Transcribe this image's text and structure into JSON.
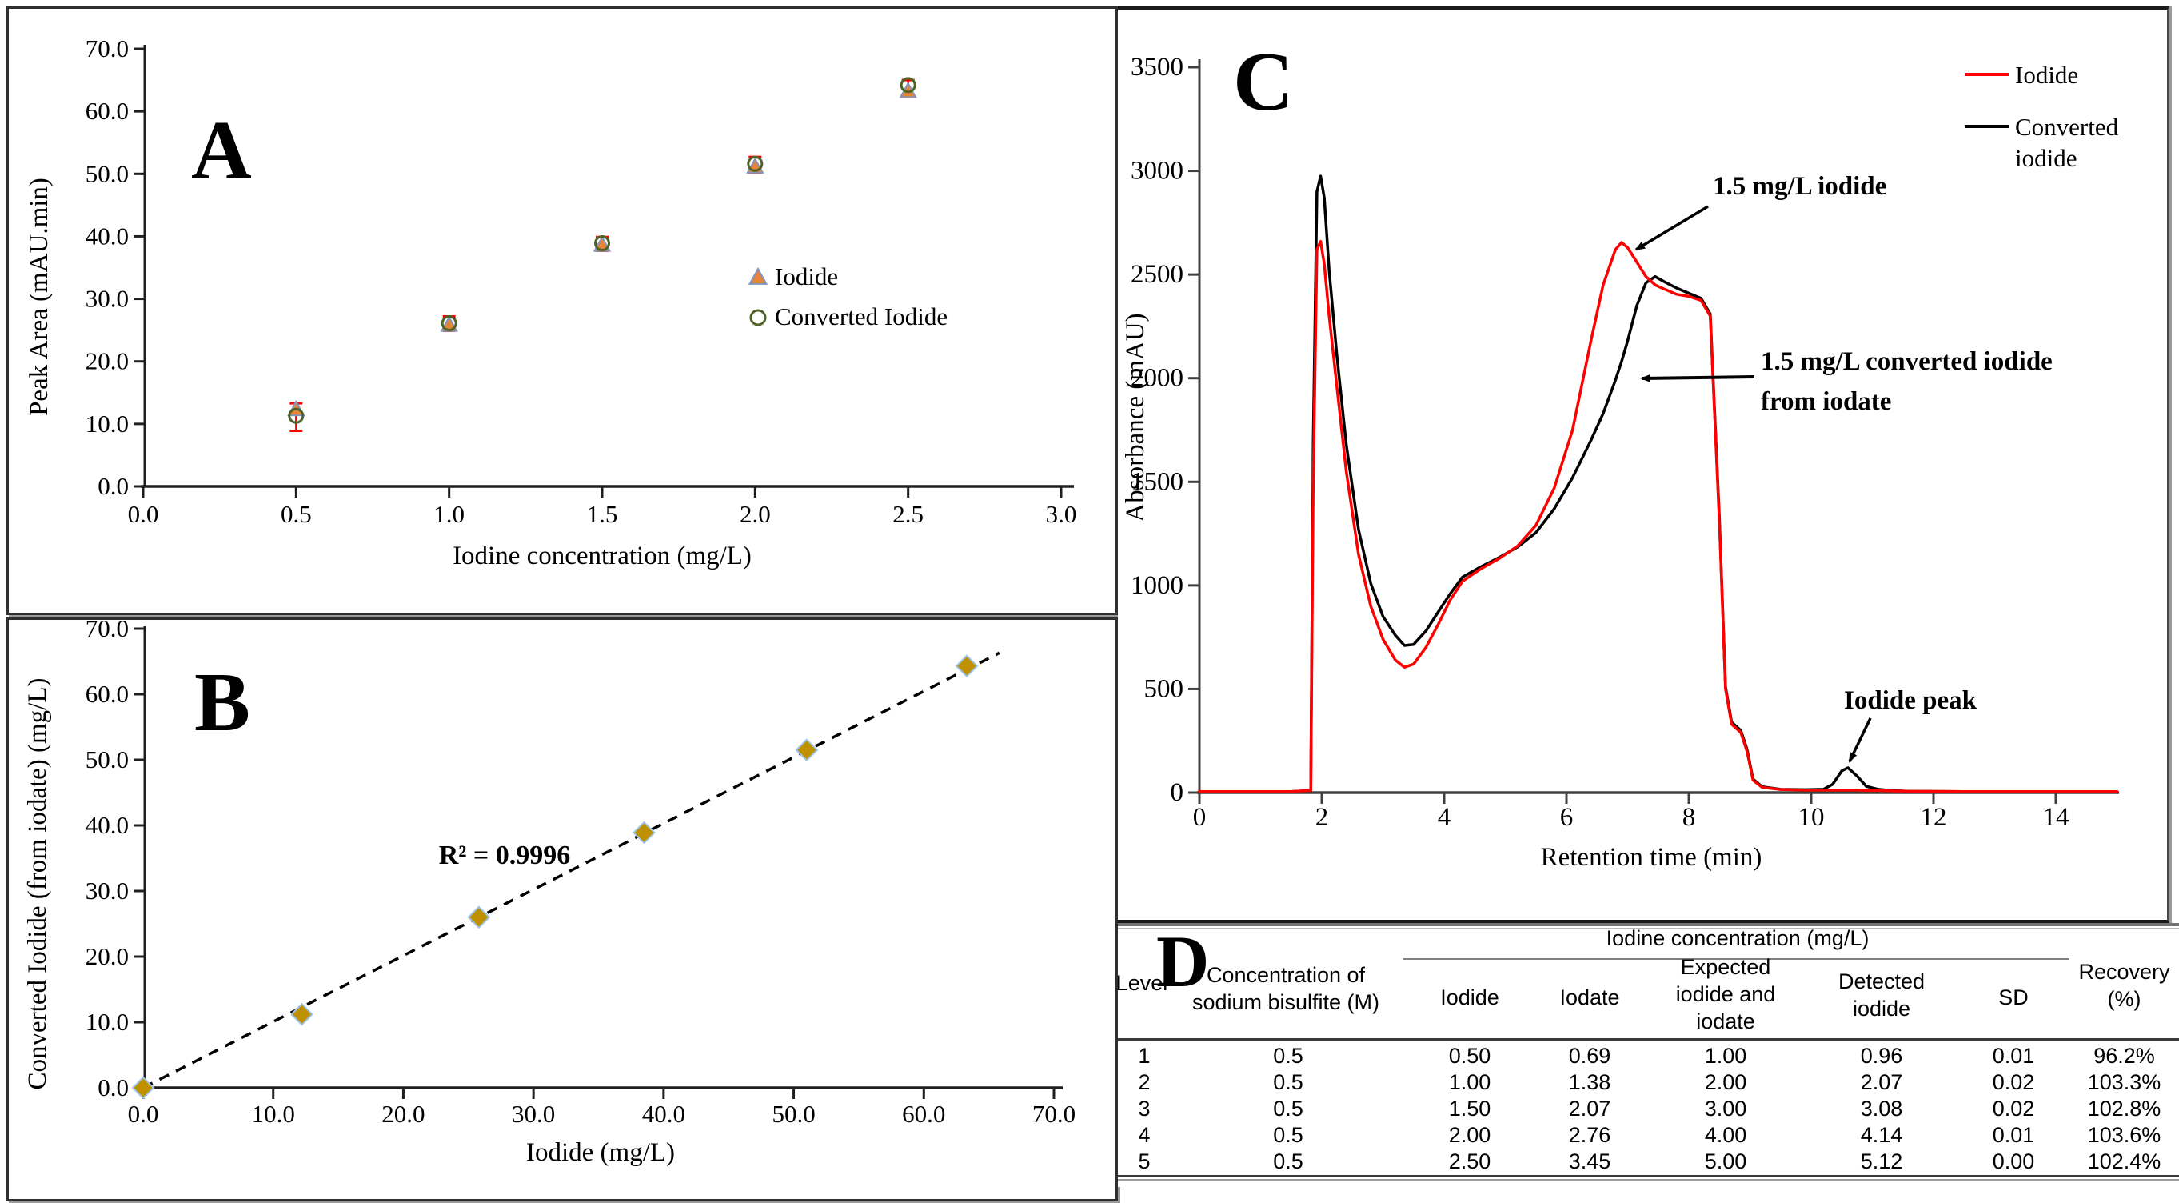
{
  "accent_colors": {
    "red": "#ff0000",
    "black": "#000000",
    "gold": "#bf9000",
    "light_blue": "#9dc3e6",
    "olive_green": "#4f6228",
    "orange": "#e8833a",
    "slate_blue": "#8096bc"
  },
  "chart_data": [
    {
      "id": "A",
      "type": "scatter",
      "panel_label": "A",
      "xlabel": "Iodine concentration (mg/L)",
      "ylabel": "Peak Area (mAU.min)",
      "xlim": [
        0,
        3
      ],
      "ylim": [
        0,
        70
      ],
      "xtick_labels": [
        "0.0",
        "0.5",
        "1.0",
        "1.5",
        "2.0",
        "2.5",
        "3.0"
      ],
      "ytick_labels": [
        "0.0",
        "10.0",
        "20.0",
        "30.0",
        "40.0",
        "50.0",
        "60.0",
        "70.0"
      ],
      "legend_position": "middle-right",
      "series": [
        {
          "name": "Iodide",
          "marker": "triangle",
          "fill": "#e8833a",
          "edge": "#8096bc",
          "x": [
            0.5,
            1.0,
            1.5,
            2.0,
            2.5
          ],
          "y": [
            12.3,
            25.8,
            38.6,
            51.1,
            63.2
          ]
        },
        {
          "name": "Converted Iodide",
          "marker": "circle",
          "fill": "none",
          "edge": "#4f6228",
          "x": [
            0.5,
            1.0,
            1.5,
            2.0,
            2.5
          ],
          "y": [
            11.3,
            26.1,
            38.9,
            51.6,
            64.2
          ]
        }
      ],
      "error_bars": {
        "color": "#ff0000",
        "ranges": [
          [
            0.5,
            8.9,
            13.3
          ],
          [
            1.0,
            24.9,
            27.2
          ],
          [
            1.5,
            37.7,
            39.9
          ],
          [
            2.0,
            50.2,
            52.7
          ],
          [
            2.5,
            62.3,
            65.0
          ]
        ]
      }
    },
    {
      "id": "B",
      "type": "scatter",
      "panel_label": "B",
      "xlabel": "Iodide (mg/L)",
      "ylabel": "Converted Iodide (from iodate) (mg/L)",
      "xlim": [
        0,
        70
      ],
      "ylim": [
        0,
        70
      ],
      "xtick_labels": [
        "0.0",
        "10.0",
        "20.0",
        "30.0",
        "40.0",
        "50.0",
        "60.0",
        "70.0"
      ],
      "ytick_labels": [
        "0.0",
        "10.0",
        "20.0",
        "30.0",
        "40.0",
        "50.0",
        "60.0",
        "70.0"
      ],
      "r2_label": "R² = 0.9996",
      "trend": {
        "style": "dashed",
        "color": "#000000",
        "from": [
          0,
          0
        ],
        "to": [
          65.8,
          66.3
        ]
      },
      "series": [
        {
          "name": "Converted iodide vs iodide",
          "marker": "diamond",
          "fill": "#bf9000",
          "edge": "#9dc3e6",
          "x": [
            0,
            12.2,
            25.8,
            38.5,
            51.0,
            63.3
          ],
          "y": [
            0,
            11.2,
            26.0,
            38.9,
            51.5,
            64.3
          ]
        }
      ]
    },
    {
      "id": "C",
      "type": "line",
      "panel_label": "C",
      "xlabel": "Retention time (min)",
      "ylabel": "Absorbance (mAU)",
      "xlim": [
        0,
        15
      ],
      "ylim": [
        0,
        3500
      ],
      "xtick_labels": [
        "0",
        "2",
        "4",
        "6",
        "8",
        "10",
        "12",
        "14"
      ],
      "ytick_labels": [
        "0",
        "500",
        "1000",
        "1500",
        "2000",
        "2500",
        "3000",
        "3500"
      ],
      "legend_position": "top-right",
      "x": [
        0,
        1.5,
        1.82,
        1.86,
        1.92,
        1.98,
        2.04,
        2.12,
        2.25,
        2.4,
        2.6,
        2.8,
        3.0,
        3.2,
        3.35,
        3.5,
        3.7,
        3.9,
        4.1,
        4.3,
        4.6,
        4.9,
        5.2,
        5.5,
        5.8,
        6.1,
        6.4,
        6.6,
        6.8,
        6.9,
        7.0,
        7.15,
        7.3,
        7.45,
        7.6,
        7.8,
        8.0,
        8.2,
        8.35,
        8.5,
        8.6,
        8.7,
        8.85,
        8.95,
        9.05,
        9.2,
        9.5,
        9.9,
        10.2,
        10.35,
        10.5,
        10.6,
        10.75,
        10.9,
        11.1,
        11.3,
        11.6,
        12.5,
        14.0,
        15.0
      ],
      "series": [
        {
          "name": "Converted iodide",
          "legend_lines": [
            "Converted",
            "iodide"
          ],
          "color": "#000000",
          "y": [
            5,
            5,
            10,
            1700,
            2900,
            2975,
            2870,
            2520,
            2100,
            1680,
            1270,
            1010,
            850,
            760,
            710,
            715,
            780,
            870,
            960,
            1040,
            1090,
            1135,
            1185,
            1255,
            1370,
            1520,
            1700,
            1830,
            1990,
            2080,
            2180,
            2350,
            2460,
            2490,
            2465,
            2435,
            2410,
            2385,
            2310,
            1320,
            510,
            340,
            300,
            210,
            65,
            28,
            16,
            14,
            16,
            40,
            105,
            120,
            80,
            30,
            16,
            10,
            6,
            5,
            5,
            5
          ]
        },
        {
          "name": "Iodide",
          "legend_lines": [
            "Iodide"
          ],
          "color": "#ff0000",
          "y": [
            5,
            5,
            10,
            1500,
            2620,
            2660,
            2550,
            2300,
            1950,
            1550,
            1150,
            900,
            740,
            640,
            605,
            620,
            700,
            810,
            930,
            1020,
            1080,
            1130,
            1190,
            1290,
            1470,
            1750,
            2180,
            2450,
            2620,
            2655,
            2630,
            2560,
            2490,
            2450,
            2430,
            2405,
            2395,
            2375,
            2300,
            1300,
            500,
            330,
            290,
            200,
            60,
            25,
            15,
            12,
            12,
            12,
            12,
            12,
            12,
            10,
            10,
            8,
            6,
            5,
            5,
            5
          ]
        }
      ],
      "annotations": [
        {
          "lines": [
            "1.5 mg/L iodide"
          ],
          "points_to": "red iodide main peak"
        },
        {
          "lines": [
            "1.5 mg/L converted iodide",
            "from iodate"
          ],
          "points_to": "black converted iodide rising flank"
        },
        {
          "lines": [
            "Iodide peak"
          ],
          "points_to": "small black peak at 10.6 min"
        }
      ]
    },
    {
      "id": "D",
      "type": "table",
      "panel_label": "D",
      "span_header": "Iodine concentration (mg/L)",
      "columns": [
        "Level",
        "Concentration of\nsodium bisulfite (M)",
        "Iodide",
        "Iodate",
        "Expected\niodide and\niodate",
        "Detected\niodide",
        "SD",
        "Recovery\n(%)"
      ],
      "rows": [
        [
          "1",
          "0.5",
          "0.50",
          "0.69",
          "1.00",
          "0.96",
          "0.01",
          "96.2%"
        ],
        [
          "2",
          "0.5",
          "1.00",
          "1.38",
          "2.00",
          "2.07",
          "0.02",
          "103.3%"
        ],
        [
          "3",
          "0.5",
          "1.50",
          "2.07",
          "3.00",
          "3.08",
          "0.02",
          "102.8%"
        ],
        [
          "4",
          "0.5",
          "2.00",
          "2.76",
          "4.00",
          "4.14",
          "0.01",
          "103.6%"
        ],
        [
          "5",
          "0.5",
          "2.50",
          "3.45",
          "5.00",
          "5.12",
          "0.00",
          "102.4%"
        ]
      ]
    }
  ]
}
